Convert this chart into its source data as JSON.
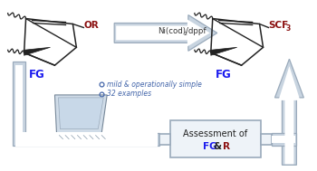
{
  "bg_color": "#ffffff",
  "arrow_fill": "#c8d4e0",
  "arrow_edge": "#9aaabb",
  "arrow_text": "Ni(cod)₂/dppf",
  "bullet1": "mild & operationally simple",
  "bullet2": "32 examples",
  "assess_text1": "Assessment of",
  "assess_text2": "FG & R",
  "fg_color": "#1a1aee",
  "or_color": "#8b1010",
  "scf3_color": "#8b1010",
  "box_edge": "#9aaabb",
  "box_bg": "#eef3f8",
  "mol_color": "#222222",
  "bullet_color": "#4466aa",
  "figsize": [
    3.5,
    1.89
  ],
  "dpi": 100
}
